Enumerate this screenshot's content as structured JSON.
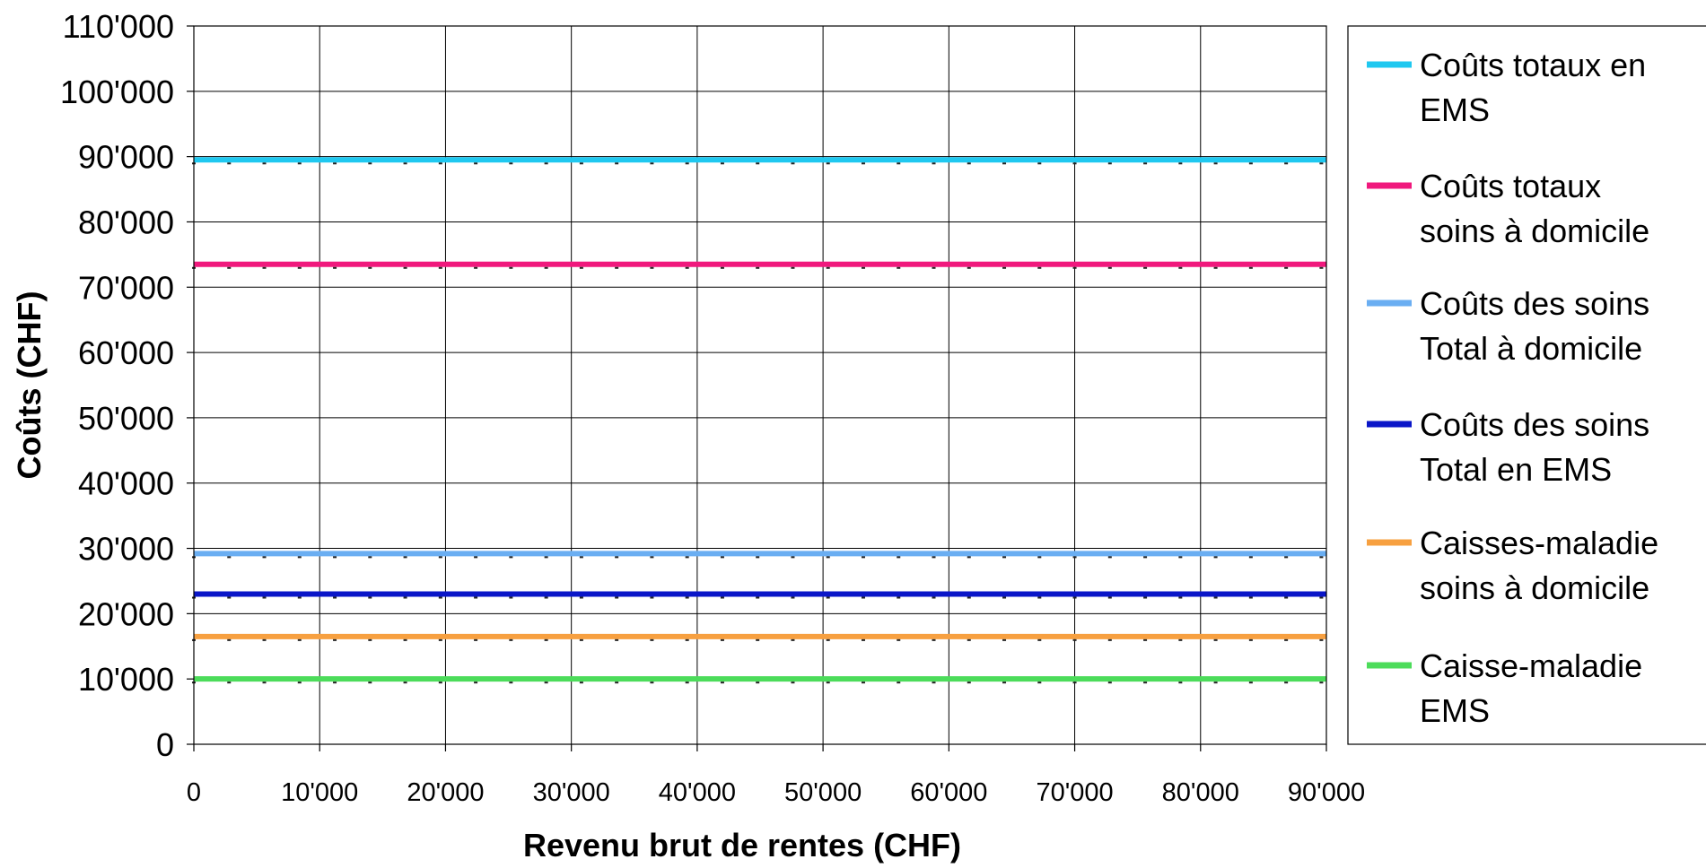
{
  "chart_data": {
    "type": "line",
    "title": "",
    "xlabel": "Revenu brut de rentes (CHF)",
    "ylabel": "Coûts (CHF)",
    "xlim": [
      0,
      90000
    ],
    "ylim": [
      0,
      110000
    ],
    "x_ticks": [
      0,
      10000,
      20000,
      30000,
      40000,
      50000,
      60000,
      70000,
      80000,
      90000
    ],
    "x_tick_labels": [
      "0",
      "10'000",
      "20'000",
      "30'000",
      "40'000",
      "50'000",
      "60'000",
      "70'000",
      "80'000",
      "90'000"
    ],
    "y_ticks": [
      0,
      10000,
      20000,
      30000,
      40000,
      50000,
      60000,
      70000,
      80000,
      90000,
      100000,
      110000
    ],
    "y_tick_labels": [
      "0",
      "10'000",
      "20'000",
      "30'000",
      "40'000",
      "50'000",
      "60'000",
      "70'000",
      "80'000",
      "90'000",
      "100'000",
      "110'000"
    ],
    "grid": true,
    "legend_position": "right",
    "x": [
      0,
      90000
    ],
    "series": [
      {
        "name": "Coûts totaux en EMS",
        "name_lines": [
          "Coûts totaux en",
          "EMS"
        ],
        "values": [
          89500,
          89500
        ],
        "color": "#1fc8f0"
      },
      {
        "name": "Coûts totaux soins à domicile",
        "name_lines": [
          "Coûts totaux",
          "soins à domicile"
        ],
        "values": [
          73500,
          73500
        ],
        "color": "#f0197d"
      },
      {
        "name": "Coûts des soins Total à domicile",
        "name_lines": [
          "Coûts des soins",
          "Total à domicile"
        ],
        "values": [
          29200,
          29200
        ],
        "color": "#6aaef2"
      },
      {
        "name": "Coûts des soins Total en EMS",
        "name_lines": [
          "Coûts des soins",
          "Total en EMS"
        ],
        "values": [
          23000,
          23000
        ],
        "color": "#0a16c8"
      },
      {
        "name": "Caisses-maladie soins à domicile",
        "name_lines": [
          "Caisses-maladie",
          "soins à domicile"
        ],
        "values": [
          16500,
          16500
        ],
        "color": "#f7a040"
      },
      {
        "name": "Caisse-maladie EMS",
        "name_lines": [
          "Caisse-maladie",
          "EMS"
        ],
        "values": [
          10000,
          10000
        ],
        "color": "#4cdc5a"
      }
    ]
  }
}
